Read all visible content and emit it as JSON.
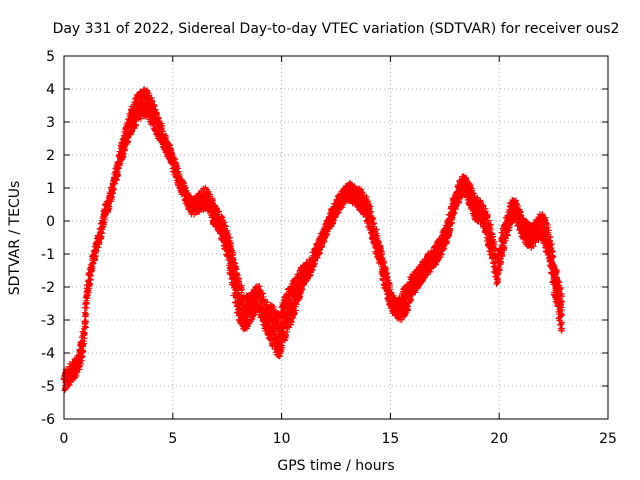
{
  "chart_data": {
    "type": "scatter",
    "title": "Day 331 of 2022, Sidereal Day-to-day VTEC variation (SDTVAR) for receiver ous2",
    "xlabel": "GPS time / hours",
    "ylabel": "SDTVAR / TECUs",
    "xlim": [
      0,
      25
    ],
    "ylim": [
      -6,
      5
    ],
    "xticks": [
      "0",
      "5",
      "10",
      "15",
      "20",
      "25"
    ],
    "yticks": [
      "5",
      "4",
      "3",
      "2",
      "1",
      "0",
      "-1",
      "-2",
      "-3",
      "-4",
      "-5",
      "-6"
    ],
    "grid": true,
    "marker": "+",
    "series": [
      {
        "name": "SDTVAR",
        "color": "#ff0000",
        "x": [
          0.0,
          0.3,
          0.5,
          0.7,
          0.9,
          1.1,
          1.3,
          1.5,
          1.7,
          1.9,
          2.1,
          2.3,
          2.5,
          2.7,
          2.9,
          3.1,
          3.3,
          3.5,
          3.7,
          3.9,
          4.1,
          4.3,
          4.5,
          4.7,
          4.9,
          5.1,
          5.3,
          5.5,
          5.7,
          5.9,
          6.1,
          6.3,
          6.5,
          6.7,
          6.9,
          7.1,
          7.3,
          7.5,
          7.7,
          7.9,
          8.1,
          8.3,
          8.5,
          8.7,
          8.9,
          9.1,
          9.3,
          9.5,
          9.7,
          9.9,
          10.1,
          10.3,
          10.5,
          10.7,
          10.9,
          11.1,
          11.3,
          11.5,
          11.7,
          11.9,
          12.1,
          12.3,
          12.5,
          12.7,
          12.9,
          13.1,
          13.3,
          13.5,
          13.7,
          13.9,
          14.1,
          14.3,
          14.5,
          14.7,
          14.9,
          15.1,
          15.3,
          15.5,
          15.7,
          15.9,
          16.1,
          16.3,
          16.5,
          16.7,
          16.9,
          17.1,
          17.3,
          17.5,
          17.7,
          17.9,
          18.1,
          18.3,
          18.5,
          18.7,
          18.9,
          19.1,
          19.3,
          19.5,
          19.7,
          19.9,
          20.1,
          20.3,
          20.5,
          20.7,
          20.9,
          21.1,
          21.3,
          21.5,
          21.7,
          21.9,
          22.1,
          22.3,
          22.5,
          22.7,
          22.9
        ],
        "y": [
          -4.9,
          -4.6,
          -4.5,
          -4.2,
          -3.6,
          -2.0,
          -1.3,
          -0.8,
          -0.3,
          0.3,
          0.6,
          1.2,
          1.7,
          2.2,
          2.7,
          3.0,
          3.3,
          3.5,
          3.6,
          3.5,
          3.2,
          2.9,
          2.6,
          2.3,
          2.0,
          1.6,
          1.2,
          0.9,
          0.6,
          0.4,
          0.5,
          0.6,
          0.7,
          0.5,
          0.2,
          0.0,
          -0.3,
          -0.7,
          -1.3,
          -2.0,
          -2.5,
          -2.8,
          -2.7,
          -2.5,
          -2.3,
          -2.6,
          -2.9,
          -3.1,
          -3.3,
          -3.5,
          -3.0,
          -2.7,
          -2.4,
          -2.1,
          -1.8,
          -1.6,
          -1.4,
          -1.1,
          -0.8,
          -0.5,
          -0.2,
          0.1,
          0.4,
          0.6,
          0.8,
          0.9,
          0.8,
          0.7,
          0.6,
          0.4,
          0.0,
          -0.5,
          -1.0,
          -1.6,
          -2.1,
          -2.5,
          -2.7,
          -2.6,
          -2.4,
          -2.1,
          -1.9,
          -1.7,
          -1.5,
          -1.3,
          -1.2,
          -1.0,
          -0.8,
          -0.5,
          -0.1,
          0.4,
          0.8,
          1.1,
          1.0,
          0.7,
          0.4,
          0.3,
          0.1,
          -0.3,
          -0.9,
          -1.5,
          -0.8,
          -0.3,
          0.2,
          0.4,
          0.1,
          -0.2,
          -0.4,
          -0.5,
          -0.3,
          -0.1,
          -0.3,
          -0.8,
          -1.6,
          -2.3,
          -2.8
        ],
        "spread": [
          0.7,
          0.6,
          0.6,
          0.6,
          0.8,
          0.6,
          0.4,
          0.4,
          0.4,
          0.4,
          0.4,
          0.4,
          0.5,
          0.6,
          0.7,
          0.8,
          0.9,
          0.9,
          0.9,
          0.8,
          0.8,
          0.7,
          0.6,
          0.5,
          0.5,
          0.5,
          0.5,
          0.5,
          0.5,
          0.5,
          0.5,
          0.6,
          0.7,
          0.7,
          0.7,
          0.7,
          0.8,
          0.9,
          1.1,
          1.3,
          1.3,
          1.1,
          0.9,
          0.8,
          0.8,
          0.9,
          1.0,
          1.2,
          1.3,
          1.4,
          1.4,
          1.3,
          1.2,
          1.0,
          0.8,
          0.6,
          0.5,
          0.5,
          0.5,
          0.5,
          0.5,
          0.5,
          0.5,
          0.5,
          0.5,
          0.6,
          0.6,
          0.6,
          0.7,
          0.7,
          0.8,
          0.8,
          0.8,
          0.8,
          0.7,
          0.6,
          0.6,
          0.8,
          0.9,
          0.8,
          0.7,
          0.6,
          0.6,
          0.6,
          0.6,
          0.6,
          0.6,
          0.6,
          0.6,
          0.6,
          0.6,
          0.6,
          0.6,
          0.7,
          0.7,
          0.7,
          0.8,
          0.9,
          0.9,
          0.9,
          0.8,
          0.7,
          0.7,
          0.7,
          0.7,
          0.7,
          0.7,
          0.7,
          0.7,
          0.8,
          0.9,
          1.0,
          1.1,
          1.2,
          1.3
        ]
      }
    ]
  }
}
